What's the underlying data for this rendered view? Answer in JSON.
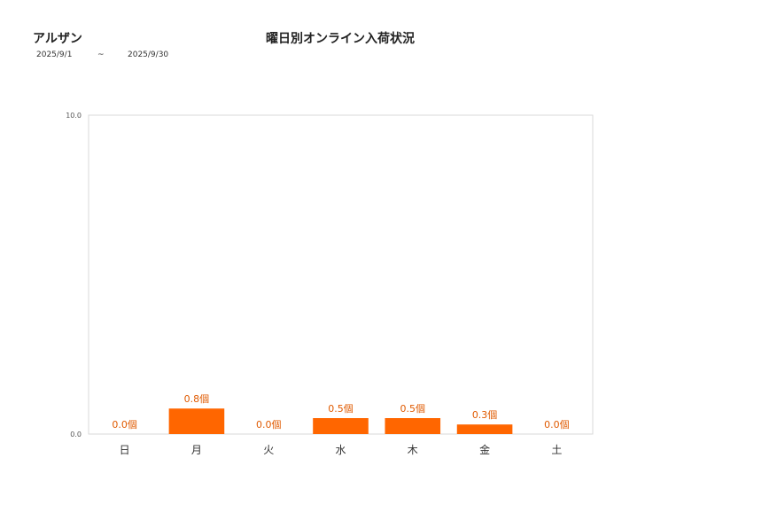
{
  "header": {
    "shop_name": "アルザン",
    "date_from": "2025/9/1",
    "date_sep": "~",
    "date_to": "2025/9/30"
  },
  "chart_data": {
    "type": "bar",
    "title": "曜日別オンライン入荷状況",
    "categories": [
      "日",
      "月",
      "火",
      "水",
      "木",
      "金",
      "土"
    ],
    "values": [
      0.0,
      0.8,
      0.0,
      0.5,
      0.5,
      0.3,
      0.0
    ],
    "value_labels": [
      "0.0個",
      "0.8個",
      "0.0個",
      "0.5個",
      "0.5個",
      "0.3個",
      "0.0個"
    ],
    "y_ticks": [
      "0.0",
      "10.0"
    ],
    "ylim": [
      0,
      10
    ],
    "xlabel": "",
    "ylabel": "",
    "grid": false,
    "bar_color": "#ff6600",
    "label_color": "#e05a00"
  }
}
